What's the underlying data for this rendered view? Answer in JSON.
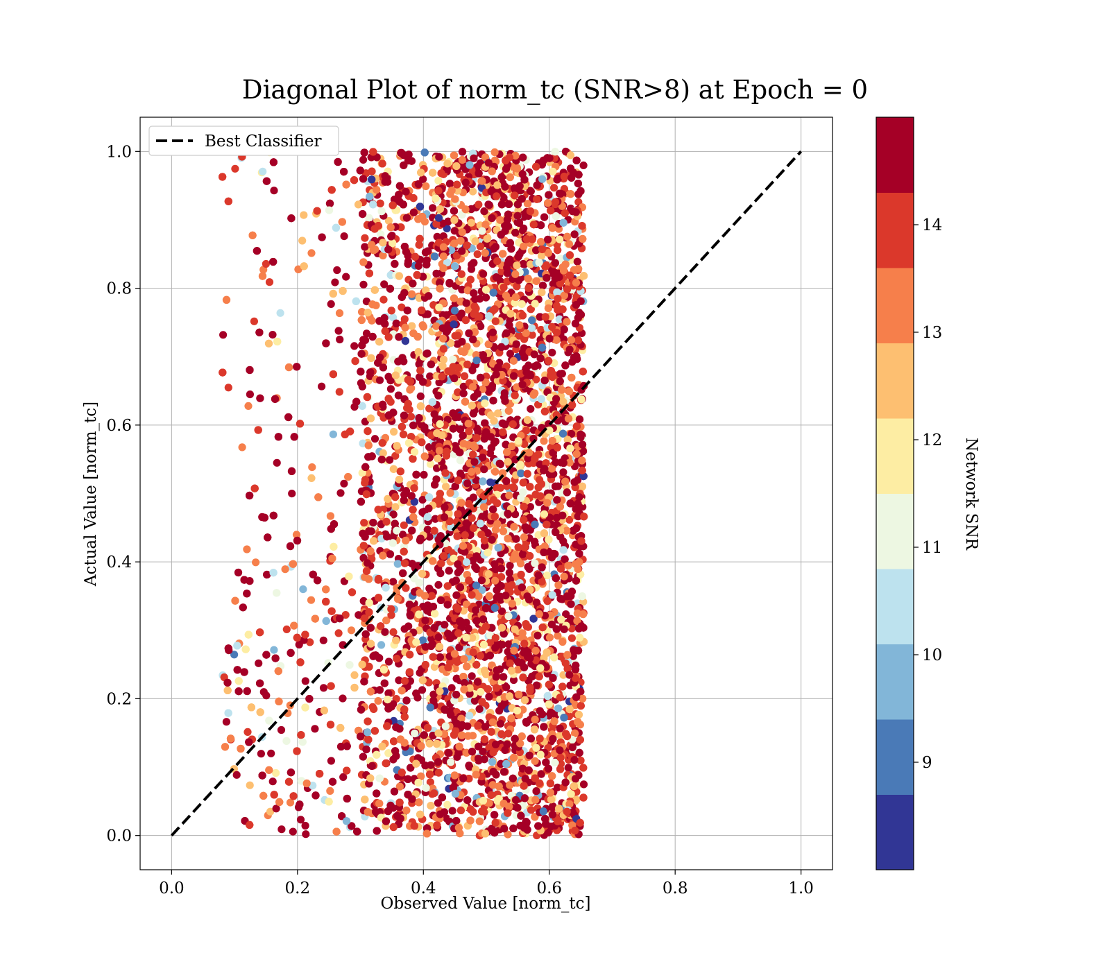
{
  "chart_data": {
    "type": "scatter",
    "title": "Diagonal Plot of norm_tc (SNR>8) at Epoch = 0",
    "xlabel": "Observed Value [norm_tc]",
    "ylabel": "Actual Value [norm_tc]",
    "xlim": [
      -0.05,
      1.05
    ],
    "ylim": [
      -0.05,
      1.05
    ],
    "xticks": [
      "0.0",
      "0.2",
      "0.4",
      "0.6",
      "0.8",
      "1.0"
    ],
    "yticks": [
      "0.0",
      "0.2",
      "0.4",
      "0.6",
      "0.8",
      "1.0"
    ],
    "grid": true,
    "legend": {
      "label": "Best Classifier",
      "placement": "upper left"
    },
    "reference_line": {
      "x": [
        0,
        1
      ],
      "y": [
        0,
        1
      ],
      "style": "dashed",
      "color": "#000000"
    },
    "point_cloud": {
      "x_range": [
        0.08,
        0.66
      ],
      "y_range": [
        0.0,
        1.0
      ],
      "n_points_approx": 9000,
      "description": "dense rectangular band, sparse at low x, densest at x 0.45-0.65"
    },
    "colorbar": {
      "label": "Network SNR",
      "range": [
        8,
        15
      ],
      "ticks": [
        "9",
        "10",
        "11",
        "12",
        "13",
        "14"
      ],
      "bins": [
        8,
        8.7,
        9.4,
        10.1,
        10.8,
        11.5,
        12.2,
        12.9,
        13.6,
        14.3,
        15
      ],
      "colors": [
        "#313695",
        "#4a7ab7",
        "#82b6d8",
        "#bde2ee",
        "#edf7e2",
        "#fdeda3",
        "#fdbf71",
        "#f67f4b",
        "#db382b",
        "#a50026"
      ]
    }
  }
}
